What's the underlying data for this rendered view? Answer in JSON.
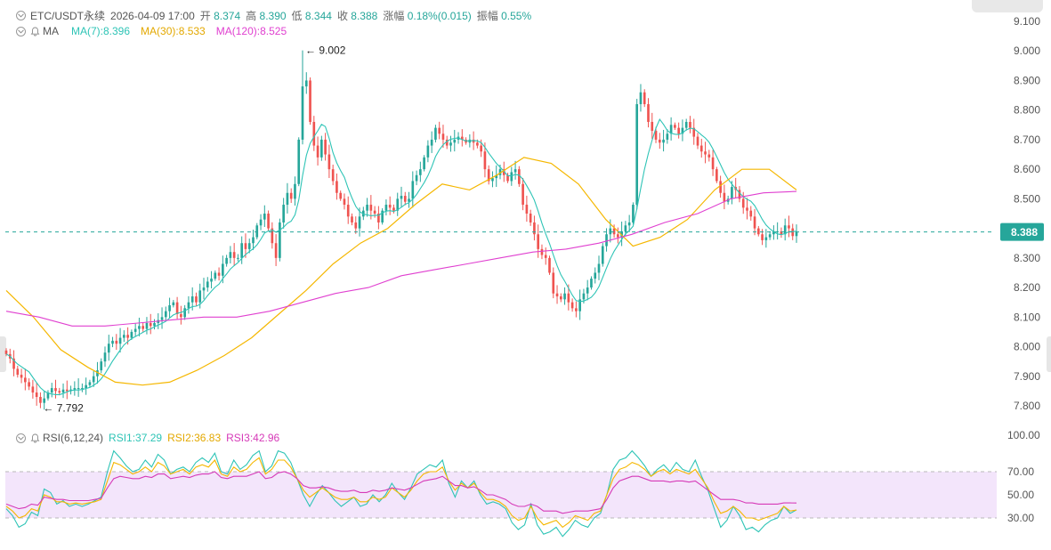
{
  "header": {
    "symbol": "ETC/USDT永续",
    "datetime": "2026-04-09 17:00",
    "open_label": "开",
    "open": "8.374",
    "high_label": "高",
    "high": "8.390",
    "low_label": "低",
    "low": "8.344",
    "close_label": "收",
    "close": "8.388",
    "change_label": "涨幅",
    "change": "0.18%(0.015)",
    "amplitude_label": "振幅",
    "amplitude": "0.55%"
  },
  "ma_legend": {
    "title": "MA",
    "ma7": "MA(7):8.396",
    "ma30": "MA(30):8.533",
    "ma120": "MA(120):8.525"
  },
  "rsi_legend": {
    "title": "RSI(6,12,24)",
    "rsi1": "RSI1:37.29",
    "rsi2": "RSI2:36.83",
    "rsi3": "RSI3:42.96"
  },
  "colors": {
    "up": "#26a69a",
    "down": "#ef5350",
    "ma7": "#2ec4b6",
    "ma30": "#f5b700",
    "ma120": "#e040d0",
    "rsi1": "#2ec4b6",
    "rsi2": "#f5b700",
    "rsi3": "#d63ab8",
    "rsi_band": "#f3e5fb",
    "price_line": "#26a69a"
  },
  "chart_data": [
    {
      "type": "candlestick",
      "title": "ETC/USDT永续",
      "ylim": [
        7.75,
        9.11
      ],
      "ytick_labels": [
        "9.100",
        "9.000",
        "8.900",
        "8.800",
        "8.700",
        "8.600",
        "8.500",
        "8.400",
        "8.300",
        "8.200",
        "8.100",
        "8.000",
        "7.900",
        "7.800"
      ],
      "yticks": [
        9.1,
        9.0,
        8.9,
        8.8,
        8.7,
        8.6,
        8.5,
        8.4,
        8.3,
        8.2,
        8.1,
        8.0,
        7.9,
        7.8
      ],
      "current_price": 8.388,
      "current_price_label": "8.388",
      "max_label": "9.002",
      "max_index": 78,
      "max_value": 9.002,
      "min_label": "7.792",
      "min_index": 9,
      "min_value": 7.792,
      "close": [
        7.975,
        7.96,
        7.925,
        7.905,
        7.895,
        7.88,
        7.865,
        7.845,
        7.83,
        7.81,
        7.825,
        7.845,
        7.86,
        7.85,
        7.845,
        7.855,
        7.85,
        7.855,
        7.86,
        7.86,
        7.86,
        7.87,
        7.88,
        7.9,
        7.92,
        7.95,
        7.98,
        8.01,
        8.02,
        8.01,
        8.03,
        8.04,
        8.03,
        8.05,
        8.06,
        8.07,
        8.06,
        8.08,
        8.07,
        8.08,
        8.09,
        8.1,
        8.12,
        8.14,
        8.15,
        8.11,
        8.1,
        8.13,
        8.15,
        8.17,
        8.15,
        8.19,
        8.2,
        8.22,
        8.23,
        8.25,
        8.24,
        8.28,
        8.3,
        8.32,
        8.3,
        8.3,
        8.35,
        8.33,
        8.35,
        8.37,
        8.41,
        8.43,
        8.45,
        8.4,
        8.35,
        8.3,
        8.42,
        8.48,
        8.52,
        8.5,
        8.55,
        8.7,
        8.88,
        8.9,
        8.76,
        8.68,
        8.64,
        8.7,
        8.65,
        8.6,
        8.56,
        8.52,
        8.5,
        8.48,
        8.44,
        8.42,
        8.4,
        8.44,
        8.46,
        8.48,
        8.46,
        8.45,
        8.42,
        8.46,
        8.48,
        8.47,
        8.46,
        8.5,
        8.51,
        8.49,
        8.5,
        8.56,
        8.58,
        8.6,
        8.64,
        8.68,
        8.7,
        8.74,
        8.72,
        8.7,
        8.68,
        8.69,
        8.7,
        8.71,
        8.7,
        8.69,
        8.7,
        8.69,
        8.68,
        8.66,
        8.6,
        8.56,
        8.57,
        8.58,
        8.6,
        8.58,
        8.56,
        8.59,
        8.6,
        8.55,
        8.48,
        8.45,
        8.42,
        8.38,
        8.33,
        8.31,
        8.3,
        8.25,
        8.18,
        8.17,
        8.16,
        8.18,
        8.15,
        8.13,
        8.12,
        8.16,
        8.18,
        8.2,
        8.23,
        8.25,
        8.28,
        8.34,
        8.38,
        8.4,
        8.38,
        8.37,
        8.39,
        8.41,
        8.42,
        8.48,
        8.82,
        8.86,
        8.82,
        8.76,
        8.73,
        8.7,
        8.69,
        8.7,
        8.72,
        8.75,
        8.74,
        8.72,
        8.74,
        8.76,
        8.74,
        8.71,
        8.68,
        8.66,
        8.65,
        8.64,
        8.6,
        8.56,
        8.52,
        8.49,
        8.5,
        8.54,
        8.53,
        8.5,
        8.47,
        8.46,
        8.44,
        8.4,
        8.38,
        8.36,
        8.37,
        8.38,
        8.39,
        8.39,
        8.38,
        8.41,
        8.4,
        8.374,
        8.388
      ],
      "ma7_last": 8.396,
      "ma30_last": 8.533,
      "ma120_last": 8.525,
      "ma30_curve_hint": [
        8.19,
        8.1,
        7.99,
        7.93,
        7.88,
        7.87,
        7.88,
        7.92,
        7.97,
        8.03,
        8.11,
        8.19,
        8.28,
        8.35,
        8.4,
        8.48,
        8.55,
        8.53,
        8.58,
        8.64,
        8.62,
        8.55,
        8.43,
        8.34,
        8.37,
        8.43,
        8.53,
        8.6,
        8.6,
        8.53
      ],
      "ma120_curve_hint": [
        8.12,
        8.1,
        8.07,
        8.07,
        8.08,
        8.09,
        8.1,
        8.1,
        8.12,
        8.15,
        8.18,
        8.2,
        8.24,
        8.26,
        8.28,
        8.3,
        8.32,
        8.33,
        8.35,
        8.38,
        8.42,
        8.45,
        8.5,
        8.52,
        8.525
      ]
    },
    {
      "type": "line",
      "title": "RSI(6,12,24)",
      "ylim": [
        10,
        100
      ],
      "ytick_labels": [
        "100.00",
        "70.00",
        "50.00",
        "30.00"
      ],
      "yticks": [
        100,
        70,
        50,
        30
      ],
      "band": [
        30,
        70
      ],
      "series": [
        {
          "name": "RSI1",
          "last": 37.29,
          "values": [
            38,
            32,
            22,
            25,
            35,
            32,
            55,
            52,
            42,
            45,
            40,
            42,
            40,
            42,
            45,
            48,
            70,
            88,
            82,
            75,
            70,
            72,
            80,
            74,
            85,
            80,
            68,
            72,
            74,
            70,
            78,
            82,
            78,
            86,
            70,
            68,
            80,
            72,
            76,
            84,
            88,
            70,
            75,
            88,
            86,
            78,
            64,
            50,
            40,
            50,
            58,
            52,
            45,
            40,
            44,
            48,
            40,
            42,
            50,
            44,
            50,
            60,
            52,
            46,
            56,
            68,
            72,
            76,
            74,
            80,
            60,
            48,
            62,
            56,
            62,
            50,
            42,
            44,
            42,
            38,
            26,
            20,
            24,
            42,
            24,
            16,
            18,
            22,
            14,
            20,
            28,
            24,
            22,
            30,
            34,
            50,
            72,
            80,
            82,
            88,
            82,
            75,
            66,
            72,
            76,
            70,
            78,
            72,
            70,
            80,
            66,
            54,
            38,
            22,
            28,
            40,
            32,
            20,
            22,
            18,
            24,
            28,
            30,
            40,
            34,
            37
          ]
        },
        {
          "name": "RSI2",
          "last": 36.83,
          "values": [
            40,
            36,
            30,
            32,
            38,
            36,
            50,
            48,
            44,
            44,
            42,
            43,
            42,
            43,
            44,
            46,
            62,
            78,
            76,
            72,
            68,
            70,
            74,
            70,
            78,
            75,
            68,
            70,
            72,
            68,
            74,
            76,
            74,
            80,
            68,
            66,
            74,
            70,
            72,
            78,
            82,
            68,
            72,
            80,
            80,
            74,
            64,
            54,
            48,
            52,
            56,
            52,
            48,
            46,
            46,
            48,
            44,
            44,
            48,
            46,
            48,
            56,
            52,
            48,
            54,
            62,
            68,
            70,
            70,
            74,
            62,
            54,
            60,
            56,
            60,
            52,
            46,
            46,
            44,
            40,
            32,
            28,
            30,
            40,
            30,
            24,
            26,
            28,
            22,
            26,
            32,
            30,
            28,
            34,
            36,
            50,
            64,
            72,
            74,
            78,
            76,
            72,
            66,
            70,
            72,
            68,
            72,
            70,
            68,
            72,
            64,
            56,
            44,
            34,
            36,
            40,
            36,
            30,
            30,
            28,
            30,
            32,
            34,
            40,
            36,
            36.83
          ]
        },
        {
          "name": "RSI3",
          "last": 42.96,
          "values": [
            42,
            40,
            38,
            39,
            42,
            41,
            48,
            47,
            46,
            46,
            45,
            45,
            45,
            45,
            46,
            47,
            56,
            64,
            66,
            65,
            64,
            64,
            66,
            65,
            68,
            68,
            64,
            65,
            66,
            65,
            67,
            68,
            68,
            70,
            65,
            64,
            66,
            66,
            66,
            68,
            70,
            64,
            65,
            69,
            70,
            68,
            64,
            58,
            56,
            56,
            57,
            56,
            54,
            53,
            53,
            54,
            52,
            52,
            54,
            53,
            54,
            56,
            55,
            54,
            56,
            59,
            62,
            63,
            64,
            66,
            62,
            58,
            58,
            56,
            57,
            54,
            50,
            50,
            48,
            46,
            42,
            40,
            40,
            42,
            40,
            36,
            36,
            36,
            34,
            35,
            36,
            36,
            36,
            37,
            38,
            46,
            56,
            62,
            64,
            66,
            66,
            64,
            62,
            62,
            62,
            61,
            62,
            62,
            61,
            62,
            58,
            54,
            50,
            46,
            46,
            46,
            45,
            43,
            43,
            42,
            42,
            42,
            42,
            43,
            43,
            42.96
          ]
        }
      ]
    }
  ]
}
